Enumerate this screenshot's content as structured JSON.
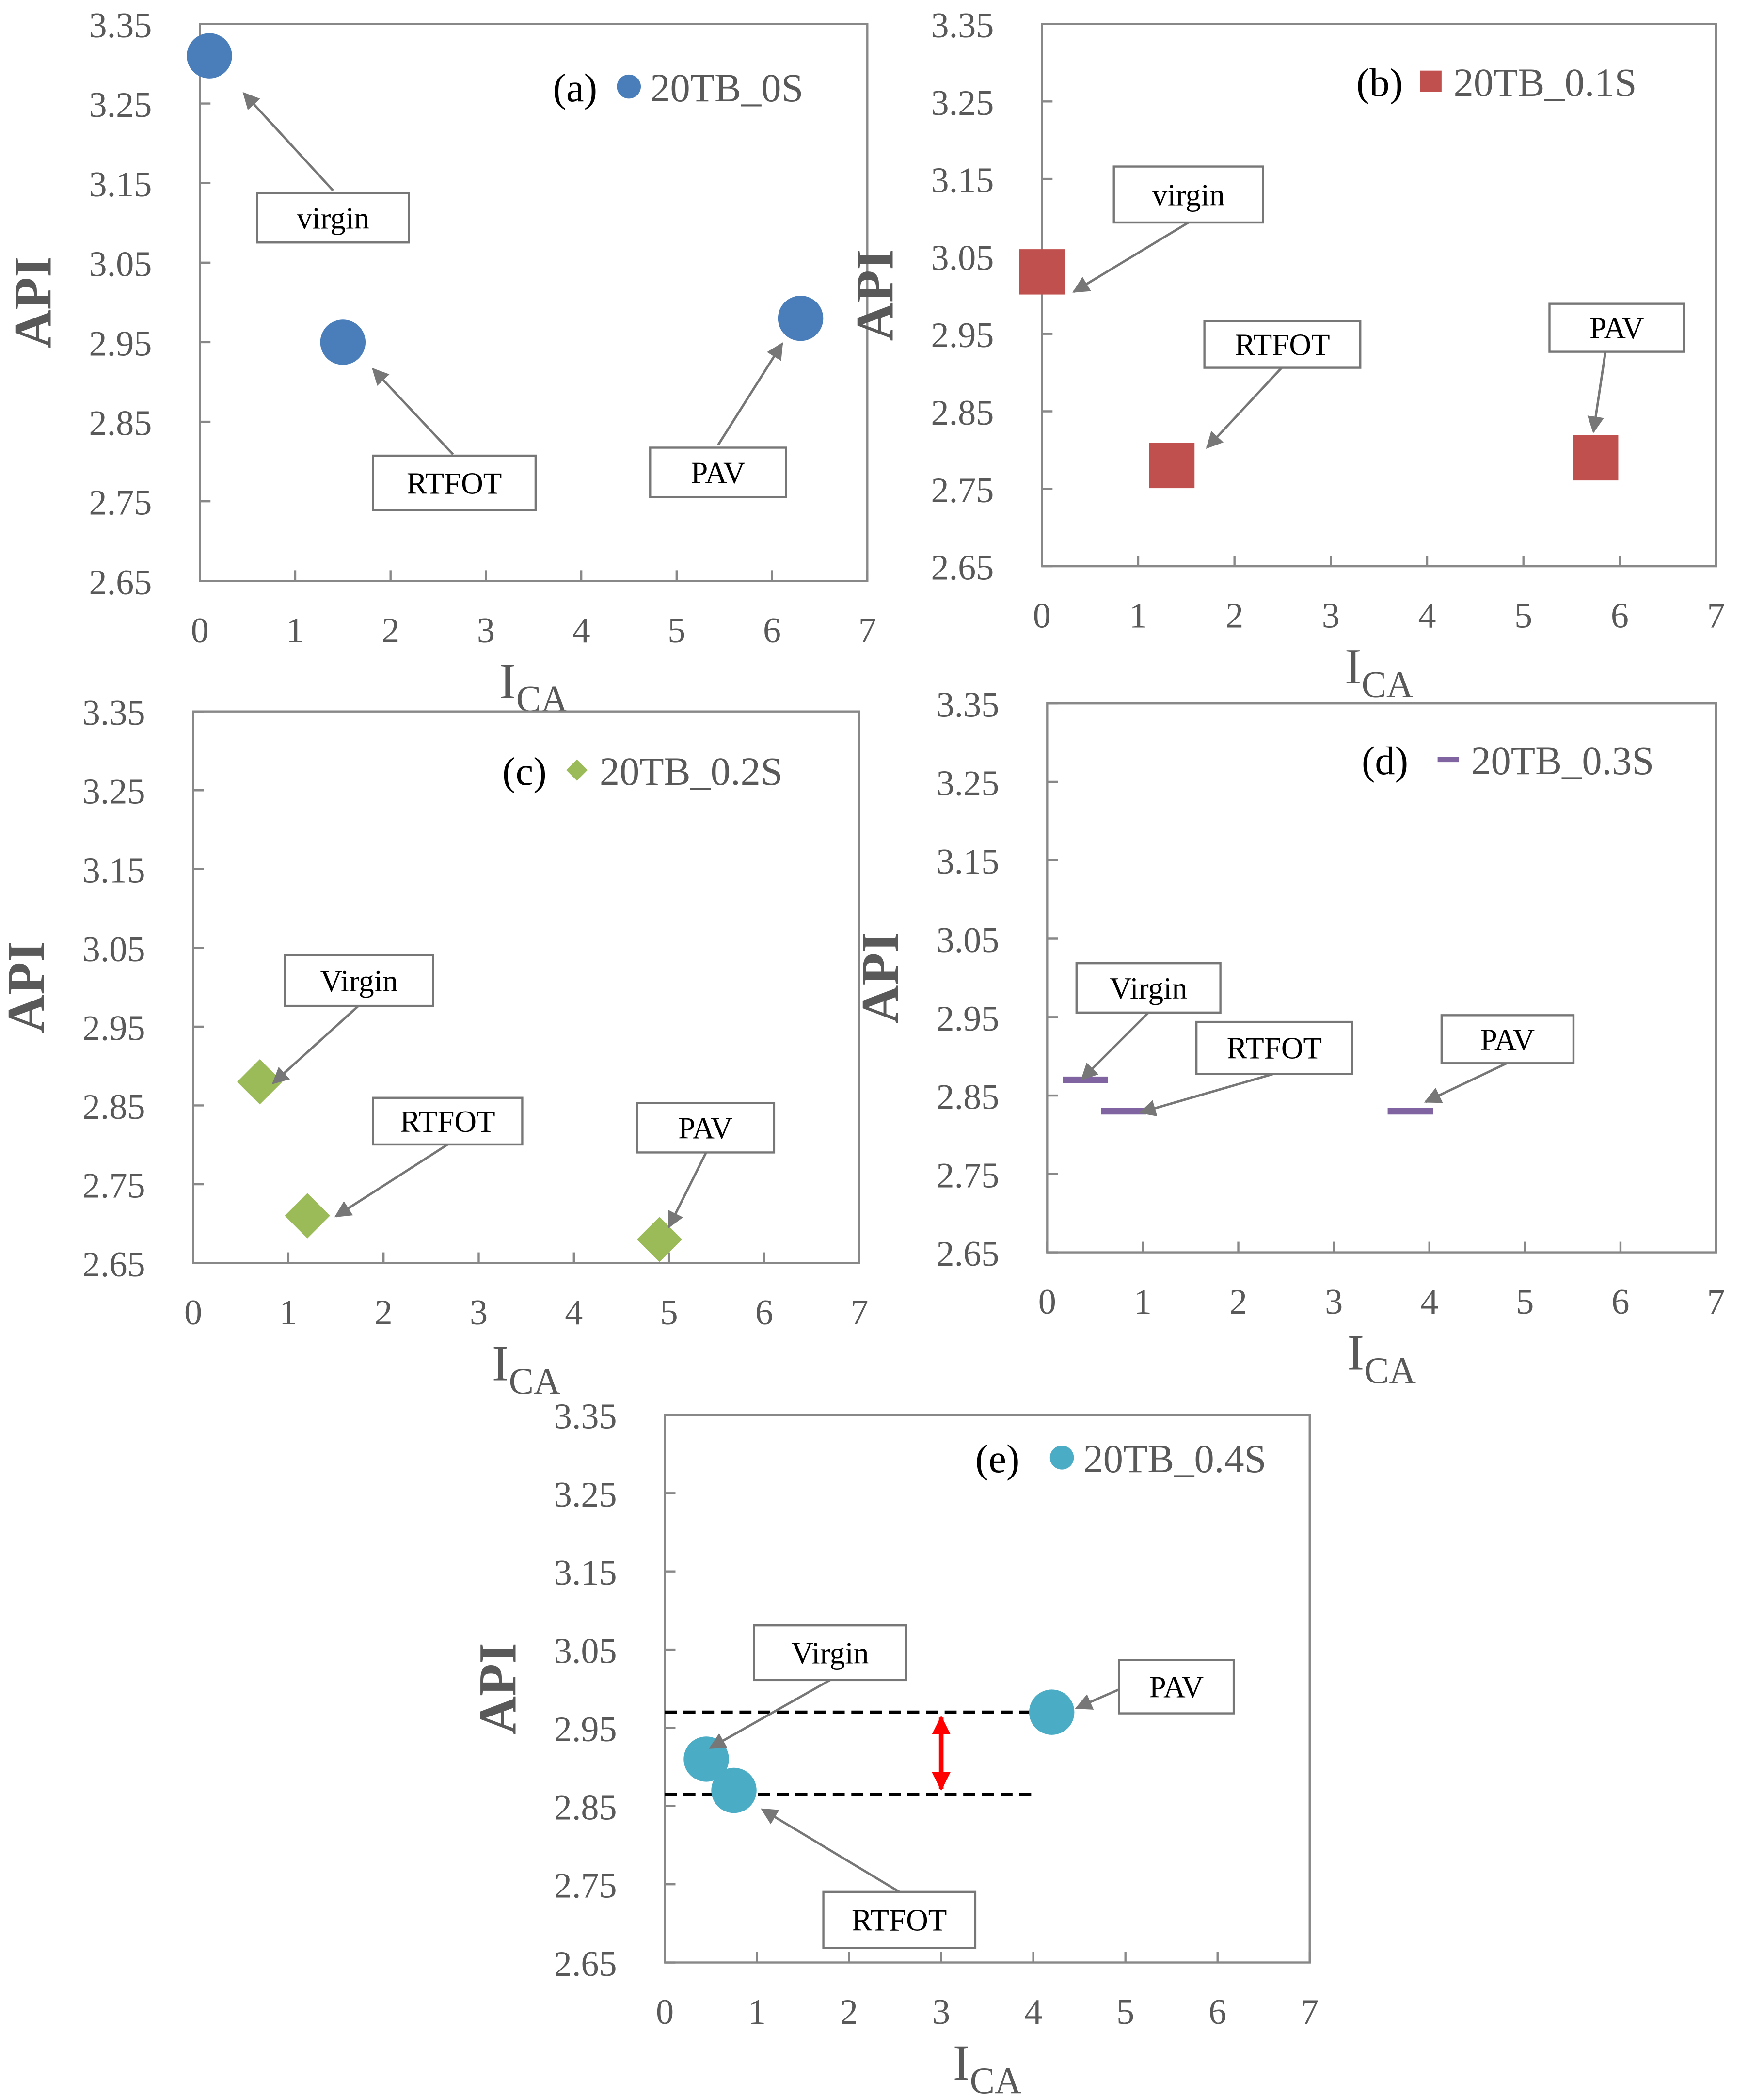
{
  "figure": {
    "x_label": "I",
    "x_label_sub": "CA",
    "y_label": "API"
  },
  "chart_data": [
    {
      "type": "scatter",
      "panel": "(a)",
      "series_name": "20TB_0S",
      "marker": "circle",
      "color": "#4a7ebb",
      "xlim": [
        0,
        7
      ],
      "ylim": [
        2.65,
        3.35
      ],
      "x_ticks": [
        "0",
        "1",
        "2",
        "3",
        "4",
        "5",
        "6",
        "7"
      ],
      "y_ticks": [
        "2.65",
        "2.75",
        "2.85",
        "2.95",
        "3.05",
        "3.15",
        "3.25",
        "3.35"
      ],
      "points": [
        {
          "label": "virgin",
          "x": 0.1,
          "y": 3.31
        },
        {
          "label": "RTFOT",
          "x": 1.5,
          "y": 2.95
        },
        {
          "label": "PAV",
          "x": 6.3,
          "y": 2.98
        }
      ]
    },
    {
      "type": "scatter",
      "panel": "(b)",
      "series_name": "20TB_0.1S",
      "marker": "square",
      "color": "#c0504d",
      "xlim": [
        0,
        7
      ],
      "ylim": [
        2.65,
        3.35
      ],
      "x_ticks": [
        "0",
        "1",
        "2",
        "3",
        "4",
        "5",
        "6",
        "7"
      ],
      "y_ticks": [
        "2.65",
        "2.75",
        "2.85",
        "2.95",
        "3.05",
        "3.15",
        "3.25",
        "3.35"
      ],
      "points": [
        {
          "label": "virgin",
          "x": 0.0,
          "y": 3.03
        },
        {
          "label": "RTFOT",
          "x": 1.35,
          "y": 2.78
        },
        {
          "label": "PAV",
          "x": 5.75,
          "y": 2.79
        }
      ]
    },
    {
      "type": "scatter",
      "panel": "(c)",
      "series_name": "20TB_0.2S",
      "marker": "diamond",
      "color": "#9bbb59",
      "xlim": [
        0,
        7
      ],
      "ylim": [
        2.65,
        3.35
      ],
      "x_ticks": [
        "0",
        "1",
        "2",
        "3",
        "4",
        "5",
        "6",
        "7"
      ],
      "y_ticks": [
        "2.65",
        "2.75",
        "2.85",
        "2.95",
        "3.05",
        "3.15",
        "3.25",
        "3.35"
      ],
      "points": [
        {
          "label": "Virgin",
          "x": 0.7,
          "y": 2.88
        },
        {
          "label": "RTFOT",
          "x": 1.2,
          "y": 2.71
        },
        {
          "label": "PAV",
          "x": 4.9,
          "y": 2.68
        }
      ]
    },
    {
      "type": "scatter",
      "panel": "(d)",
      "series_name": "20TB_0.3S",
      "marker": "dash",
      "color": "#8064a2",
      "xlim": [
        0,
        7
      ],
      "ylim": [
        2.65,
        3.35
      ],
      "x_ticks": [
        "0",
        "1",
        "2",
        "3",
        "4",
        "5",
        "6",
        "7"
      ],
      "y_ticks": [
        "2.65",
        "2.75",
        "2.85",
        "2.95",
        "3.05",
        "3.15",
        "3.25",
        "3.35"
      ],
      "points": [
        {
          "label": "Virgin",
          "x": 0.4,
          "y": 2.87
        },
        {
          "label": "RTFOT",
          "x": 0.8,
          "y": 2.83
        },
        {
          "label": "PAV",
          "x": 3.8,
          "y": 2.83
        }
      ]
    },
    {
      "type": "scatter",
      "panel": "(e)",
      "series_name": "20TB_0.4S",
      "marker": "circle",
      "color": "#4bacc6",
      "xlim": [
        0,
        7
      ],
      "ylim": [
        2.65,
        3.35
      ],
      "x_ticks": [
        "0",
        "1",
        "2",
        "3",
        "4",
        "5",
        "6",
        "7"
      ],
      "y_ticks": [
        "2.65",
        "2.75",
        "2.85",
        "2.95",
        "3.05",
        "3.15",
        "3.25",
        "3.35"
      ],
      "points": [
        {
          "label": "Virgin",
          "x": 0.45,
          "y": 2.91
        },
        {
          "label": "RTFOT",
          "x": 0.75,
          "y": 2.87
        },
        {
          "label": "PAV",
          "x": 4.2,
          "y": 2.97
        }
      ],
      "reference_lines": [
        {
          "y": 2.97,
          "x_start": 0,
          "x_end": 4.2
        },
        {
          "y": 2.865,
          "x_start": 0,
          "x_end": 4.0
        }
      ],
      "range_arrow": {
        "x": 3.0,
        "y_top": 2.97,
        "y_bottom": 2.865,
        "color": "#ff0000"
      }
    }
  ]
}
